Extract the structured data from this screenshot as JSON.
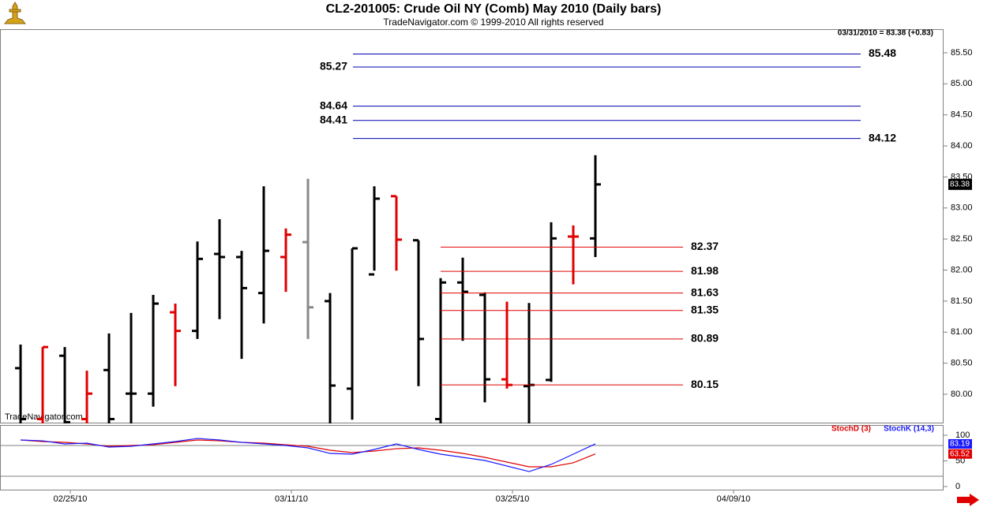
{
  "header": {
    "title": "CL2-201005:  Crude Oil NY (Comb) May 2010  (Daily bars)",
    "subtitle": "TradeNavigator.com © 1999-2010 All rights reserved",
    "status": "03/31/2010 = 83.38 (+0.83)",
    "watermark": "TradeNavigator.com"
  },
  "chart_data": [
    {
      "type": "ohlc",
      "x": [
        0,
        1,
        2,
        3,
        4,
        5,
        6,
        7,
        8,
        9,
        10,
        11,
        12,
        13,
        14,
        15,
        16,
        17,
        18,
        19,
        20,
        21,
        22,
        23,
        24,
        25,
        26
      ],
      "open": [
        80.42,
        79.6,
        80.62,
        79.6,
        80.39,
        80.01,
        80.01,
        81.32,
        81.02,
        82.26,
        82.21,
        81.63,
        82.21,
        82.45,
        81.5,
        80.09,
        81.93,
        83.19,
        82.48,
        79.6,
        81.8,
        81.6,
        80.24,
        80.13,
        80.23,
        82.54,
        82.51
      ],
      "high": [
        80.8,
        80.76,
        80.76,
        80.38,
        80.98,
        81.31,
        81.6,
        81.46,
        82.46,
        82.82,
        82.31,
        83.35,
        82.67,
        83.47,
        81.63,
        82.35,
        83.35,
        83.19,
        82.48,
        81.87,
        82.2,
        81.64,
        81.49,
        81.47,
        82.77,
        82.72,
        83.85
      ],
      "low": [
        79.4,
        79.4,
        79.4,
        79.4,
        79.4,
        79.45,
        79.8,
        80.13,
        80.89,
        81.21,
        80.57,
        81.14,
        81.65,
        80.89,
        79.4,
        79.59,
        81.99,
        81.99,
        80.13,
        79.4,
        80.86,
        79.87,
        80.09,
        79.4,
        80.2,
        81.77,
        82.21
      ],
      "close": [
        79.6,
        80.76,
        79.55,
        80.01,
        79.6,
        80.01,
        81.46,
        81.02,
        82.18,
        82.21,
        81.71,
        82.31,
        82.57,
        81.4,
        80.14,
        82.35,
        83.15,
        82.49,
        80.89,
        81.8,
        81.65,
        80.24,
        80.15,
        80.15,
        82.51,
        82.54,
        83.38
      ],
      "colors": [
        "#000000",
        "#e00000",
        "#000000",
        "#e00000",
        "#000000",
        "#000000",
        "#000000",
        "#e00000",
        "#000000",
        "#000000",
        "#000000",
        "#000000",
        "#e00000",
        "#888888",
        "#000000",
        "#000000",
        "#000000",
        "#e00000",
        "#000000",
        "#000000",
        "#000000",
        "#000000",
        "#e00000",
        "#000000",
        "#000000",
        "#e00000",
        "#000000"
      ],
      "xlim": [
        -0.93,
        41.75
      ],
      "xticks": [
        {
          "value": 2,
          "label": "02/25/10"
        },
        {
          "value": 12,
          "label": "03/11/10"
        },
        {
          "value": 22,
          "label": "03/25/10"
        },
        {
          "value": 32,
          "label": "04/09/10"
        }
      ],
      "ylim": [
        79.53,
        85.88
      ],
      "yticks": [
        {
          "value": 80,
          "label": "80.00"
        },
        {
          "value": 80.5,
          "label": "80.50"
        },
        {
          "value": 81,
          "label": "81.00"
        },
        {
          "value": 81.5,
          "label": "81.50"
        },
        {
          "value": 82,
          "label": "82.00"
        },
        {
          "value": 82.5,
          "label": "82.50"
        },
        {
          "value": 83,
          "label": "83.00"
        },
        {
          "value": 83.5,
          "label": "83.50"
        },
        {
          "value": 84,
          "label": "84.00"
        },
        {
          "value": 84.5,
          "label": "84.50"
        },
        {
          "value": 85,
          "label": "85.00"
        },
        {
          "value": 85.5,
          "label": "85.50"
        }
      ],
      "levels": [
        {
          "color": "#0000b0",
          "values": [
            85.48,
            85.27,
            84.64,
            84.41,
            84.12
          ]
        },
        {
          "color": "#e00000",
          "values": [
            82.37,
            81.98,
            81.63,
            81.35,
            80.89,
            80.15
          ]
        }
      ]
    },
    {
      "type": "line",
      "ylim": [
        -7.7,
        118.5
      ],
      "yticks": [
        100,
        50,
        0
      ],
      "reference_lines": [
        80,
        20
      ],
      "series": [
        {
          "name": "StochD (3)",
          "color": "#e00000",
          "values": [
            90.8,
            87.7,
            86.2,
            83.1,
            78.5,
            80,
            81.5,
            86.2,
            90.8,
            89.2,
            86.2,
            84.6,
            81.5,
            78.5,
            70.8,
            66.2,
            69.2,
            73.8,
            75.4,
            70.8,
            64.6,
            56.9,
            47.7,
            38.5,
            38.5,
            46.2,
            63.52
          ]
        },
        {
          "name": "StochK (14,3)",
          "color": "#1a1aff",
          "values": [
            90.8,
            89.2,
            83.1,
            84.6,
            76.9,
            78.5,
            83.1,
            87.7,
            93.8,
            90.8,
            86.2,
            83.1,
            80,
            75.4,
            64.6,
            63.1,
            72.3,
            83.1,
            72.3,
            63.1,
            56.9,
            50.8,
            40,
            29.2,
            43.1,
            63.1,
            83.19
          ]
        }
      ]
    }
  ]
}
